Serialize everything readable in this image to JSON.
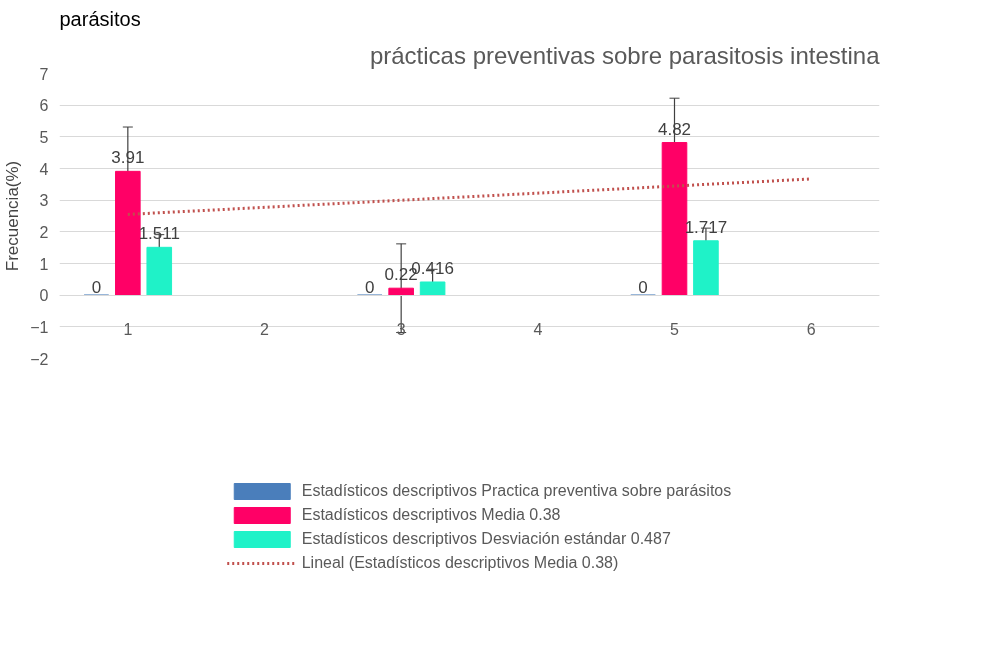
{
  "chart_data": {
    "type": "bar",
    "title": "prácticas preventivas sobre parasitosis intestina",
    "ylabel": "Frecuencia(%)",
    "annotations": [
      "parásitos"
    ],
    "categories": [
      "1",
      "2",
      "3",
      "4",
      "5",
      "6"
    ],
    "series": [
      {
        "name": "Estadísticos descriptivos Practica preventiva sobre parásitos",
        "color": "#4a7ebb",
        "values": [
          0,
          null,
          0,
          null,
          0,
          null
        ]
      },
      {
        "name": "Estadísticos descriptivos Media 0.38",
        "color": "#ff0066",
        "values": [
          3.91,
          null,
          0.22,
          null,
          4.82,
          null
        ],
        "errors": [
          1.4,
          null,
          1.4,
          null,
          1.4,
          null
        ]
      },
      {
        "name": "Estadísticos descriptivos Desviación estándar 0.487",
        "color": "#1ff2c8",
        "values": [
          1.511,
          null,
          0.416,
          null,
          1.717,
          null
        ],
        "errors": [
          0.4,
          null,
          0.4,
          null,
          0.4,
          null
        ]
      },
      {
        "name": "Lineal (Estadísticos descriptivos Media 0.38)",
        "type": "line",
        "line_style": "dotted",
        "color": "#c0504d",
        "x": [
          "1",
          "6"
        ],
        "values": [
          2.55,
          3.67
        ],
        "value_labels": [
          null,
          null
        ]
      }
    ],
    "ylim": [
      -2,
      7
    ],
    "yticks": [
      -2,
      -1,
      0,
      1,
      2,
      3,
      4,
      5,
      6,
      7
    ],
    "grid": "y",
    "legend": "bottom",
    "data_labels": true
  }
}
